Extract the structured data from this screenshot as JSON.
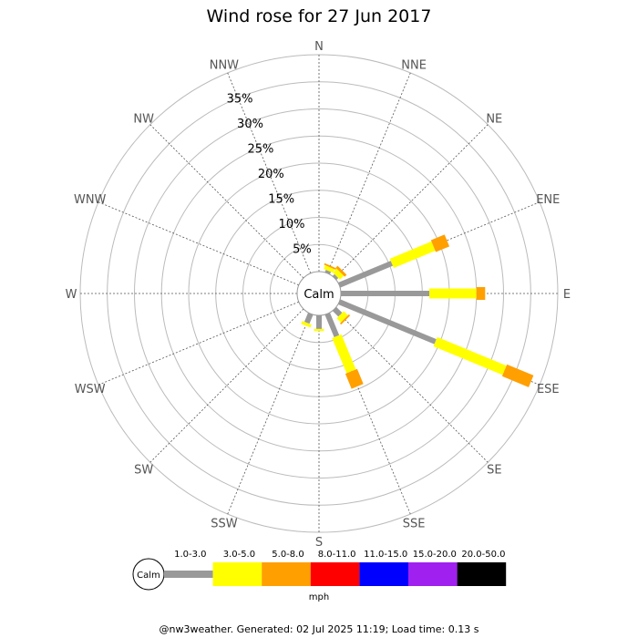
{
  "chart_data": {
    "type": "wind-rose",
    "title": "Wind rose for 27 Jun 2017",
    "directions": [
      "N",
      "NNE",
      "NE",
      "ENE",
      "E",
      "ESE",
      "SE",
      "SSE",
      "S",
      "SSW",
      "SW",
      "WSW",
      "W",
      "WNW",
      "NW",
      "NNW"
    ],
    "ring_labels": [
      "5%",
      "10%",
      "15%",
      "20%",
      "25%",
      "30%",
      "35%"
    ],
    "r_range_percent": [
      0,
      40
    ],
    "center_label": "Calm",
    "unit": "mph",
    "speed_bins": [
      "1.0-3.0",
      "3.0-5.0",
      "5.0-8.0",
      "8.0-11.0",
      "11.0-15.0",
      "15.0-20.0",
      "20.0-50.0"
    ],
    "bin_colors": [
      "#999999",
      "#ffff00",
      "#ff9f00",
      "#ff0000",
      "#0000ff",
      "#a020f0",
      "#000000"
    ],
    "series": [
      {
        "direction": "NNE",
        "cumulative_percent": [
          0.5,
          1.2,
          1.5
        ]
      },
      {
        "direction": "NE",
        "cumulative_percent": [
          0.5,
          1.5,
          2.0
        ]
      },
      {
        "direction": "ENE",
        "cumulative_percent": [
          10.5,
          18.8,
          21.5
        ]
      },
      {
        "direction": "E",
        "cumulative_percent": [
          16.3,
          25.0,
          26.6
        ]
      },
      {
        "direction": "ESE",
        "cumulative_percent": [
          19.2,
          33.0,
          38.3
        ]
      },
      {
        "direction": "SE",
        "cumulative_percent": [
          1.5,
          2.6,
          2.9
        ]
      },
      {
        "direction": "SSE",
        "cumulative_percent": [
          4.5,
          11.5,
          14.5
        ]
      },
      {
        "direction": "S",
        "cumulative_percent": [
          2.5,
          2.9
        ]
      },
      {
        "direction": "SSW",
        "cumulative_percent": [
          1.8,
          2.4
        ]
      }
    ]
  },
  "footer": "@nw3weather. Generated: 02 Jul 2025 11:19; Load time: 0.13 s"
}
